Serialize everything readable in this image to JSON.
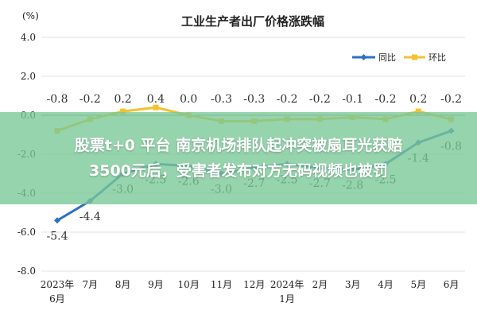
{
  "chart_data": {
    "type": "line",
    "title": "工业生产者出厂价格涨跌幅",
    "unit_label": "(%)",
    "categories": [
      "2023年\n6月",
      "7月",
      "8月",
      "9月",
      "10月",
      "11月",
      "12月",
      "2024年\n1月",
      "2月",
      "3月",
      "4月",
      "5月",
      "6月"
    ],
    "ylim": [
      -8.0,
      4.0
    ],
    "yticks": [
      "4.0",
      "2.0",
      "0.0",
      "-2.0",
      "-4.0",
      "-6.0",
      "-8.0"
    ],
    "legend_position": "top-right",
    "series": [
      {
        "name": "同比",
        "color": "#2e6fc4",
        "values": [
          -5.4,
          -4.4,
          -3.0,
          -2.5,
          -2.6,
          -3.0,
          -2.7,
          -2.5,
          -2.7,
          -2.8,
          -2.5,
          -1.4,
          -0.8
        ],
        "labels": [
          "-5.4",
          "-4.4",
          "-3.0",
          "-2.5",
          "-2.6",
          "-3.0",
          "-2.7",
          "-2.5",
          "-2.7",
          "-2.8",
          "-2.5",
          "-1.4",
          "-0.8"
        ]
      },
      {
        "name": "环比",
        "color": "#f2c230",
        "values": [
          -0.8,
          -0.2,
          0.2,
          0.4,
          0.0,
          -0.3,
          -0.3,
          -0.2,
          -0.2,
          -0.1,
          -0.2,
          0.2,
          -0.2
        ],
        "labels": [
          "-0.8",
          "-0.2",
          "0.2",
          "0.4",
          "0.0",
          "-0.3",
          "-0.3",
          "-0.2",
          "-0.2",
          "-0.1",
          "-0.2",
          "0.2",
          "-0.2"
        ]
      }
    ]
  },
  "overlay": {
    "line1": "股票t+0 平台 南京机场排队起冲突被扇耳光获赔",
    "line2": "3500元后，受害者发布对方无码视频也被罚"
  }
}
